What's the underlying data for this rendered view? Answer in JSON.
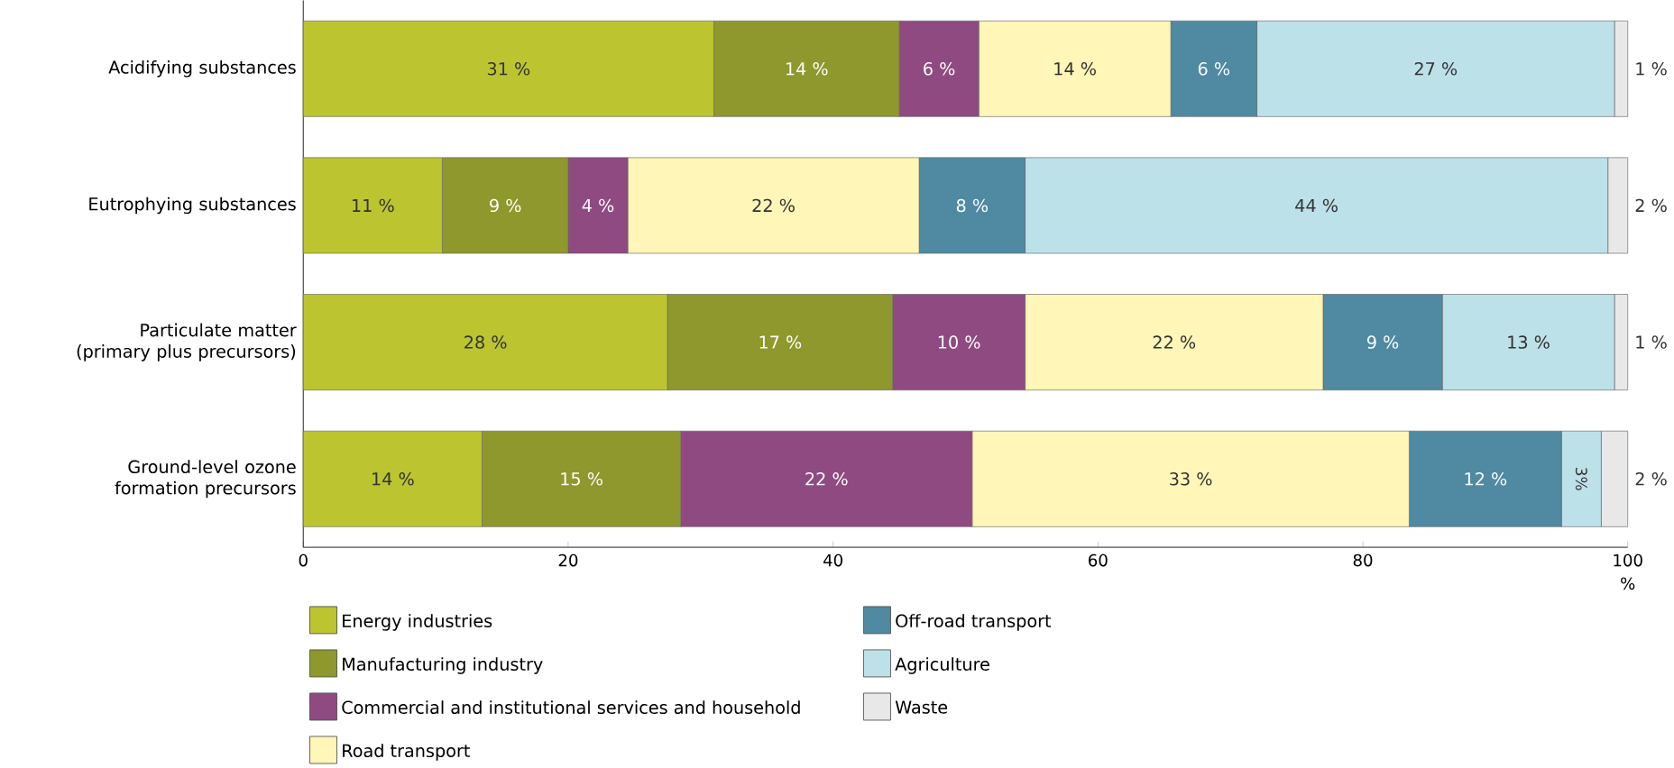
{
  "chart_data": {
    "type": "bar",
    "orientation": "horizontal",
    "stacked": true,
    "legend": "bottom",
    "grid": false,
    "categories": [
      "Acidifying substances",
      "Eutrophying substances",
      "Particulate matter (primary plus precursors)",
      "Ground-level ozone formation precursors"
    ],
    "xlabel": "%",
    "xlim": [
      0,
      100
    ],
    "xticks": [
      0,
      20,
      40,
      60,
      80,
      100
    ],
    "series": [
      {
        "name": "Energy industries",
        "color": "#bcc52f",
        "values": [
          31,
          10.5,
          27.5,
          13.5
        ],
        "value_labels": [
          "31 %",
          "11 %",
          "28 %",
          "14 %"
        ]
      },
      {
        "name": "Manufacturing industry",
        "color": "#8e982c",
        "values": [
          14,
          9.5,
          17,
          15
        ],
        "value_labels": [
          "14 %",
          "9 %",
          "17 %",
          "15 %"
        ]
      },
      {
        "name": "Commercial and institutional services and household",
        "color": "#904a82",
        "values": [
          6,
          4.5,
          10,
          22
        ],
        "value_labels": [
          "6 %",
          "4 %",
          "10 %",
          "22 %"
        ]
      },
      {
        "name": "Road transport",
        "color": "#fff6b8",
        "values": [
          14.5,
          22,
          22.5,
          33
        ],
        "value_labels": [
          "14 %",
          "22 %",
          "22 %",
          "33 %"
        ]
      },
      {
        "name": "Off-road transport",
        "color": "#4f8aa2",
        "values": [
          6.5,
          8,
          9,
          11.5
        ],
        "value_labels": [
          "6 %",
          "8 %",
          "9 %",
          "12 %"
        ]
      },
      {
        "name": "Agriculture",
        "color": "#bde1e9",
        "values": [
          27,
          44,
          13,
          3
        ],
        "value_labels": [
          "27 %",
          "44 %",
          "13 %",
          "3%"
        ]
      },
      {
        "name": "Waste",
        "color": "#e8e8e8",
        "values": [
          1,
          1.5,
          1,
          2
        ],
        "value_labels": [
          "1 %",
          "2 %",
          "1 %",
          "2 %"
        ]
      }
    ]
  }
}
